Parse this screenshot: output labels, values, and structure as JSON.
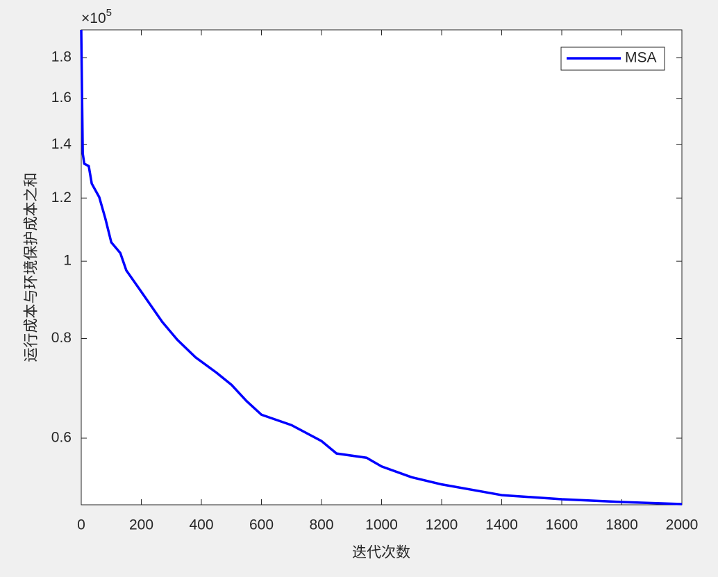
{
  "chart_data": {
    "type": "line",
    "y_label": "运行成本与环境保护成本之和",
    "x_label": "迭代次数",
    "y_exponent": {
      "base": "×10",
      "power": "5"
    },
    "log_y": true,
    "grid": false,
    "legend_position": "top-right",
    "xlim": [
      0,
      2000
    ],
    "xticks": [
      0,
      200,
      400,
      600,
      800,
      1000,
      1200,
      1400,
      1600,
      1800,
      2000
    ],
    "ylim": [
      49500,
      195000
    ],
    "yticks": [
      {
        "value": 60000,
        "label": "0.6"
      },
      {
        "value": 80000,
        "label": "0.8"
      },
      {
        "value": 100000,
        "label": "1"
      },
      {
        "value": 120000,
        "label": "1.2"
      },
      {
        "value": 140000,
        "label": "1.4"
      },
      {
        "value": 160000,
        "label": "1.6"
      },
      {
        "value": 180000,
        "label": "1.8"
      }
    ],
    "x": [
      0,
      5,
      10,
      25,
      35,
      60,
      80,
      100,
      130,
      150,
      190,
      230,
      270,
      320,
      380,
      450,
      500,
      550,
      600,
      700,
      800,
      850,
      950,
      1000,
      1100,
      1200,
      1300,
      1400,
      1600,
      1800,
      2000
    ],
    "series": [
      {
        "name": "MSA",
        "color": "#0000ff",
        "values": [
          195000,
          136500,
          132500,
          131600,
          125100,
          120300,
          113200,
          105600,
          102400,
          97400,
          92700,
          88200,
          83900,
          79700,
          75800,
          72500,
          70000,
          66800,
          64200,
          62300,
          59500,
          57400,
          56700,
          55300,
          53600,
          52500,
          51700,
          50900,
          50300,
          49900,
          49600
        ]
      }
    ]
  }
}
